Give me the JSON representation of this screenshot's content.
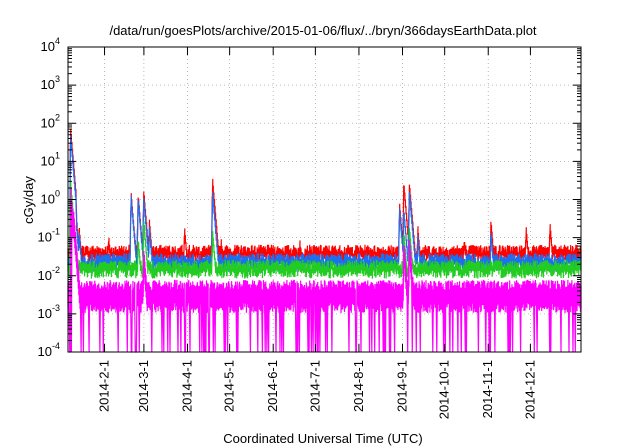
{
  "chart_data": {
    "type": "line",
    "title": "/data/run/goesPlots/archive/2015-01-06/flux/../bryn/366daysEarthData.plot",
    "xlabel": "Coordinated Universal Time (UTC)",
    "ylabel": "cGy/day",
    "yscale": "log",
    "ylim": [
      0.0001,
      10000
    ],
    "y_ticks": [
      {
        "base": "10",
        "exp": "-4",
        "value": 0.0001
      },
      {
        "base": "10",
        "exp": "-3",
        "value": 0.001
      },
      {
        "base": "10",
        "exp": "-2",
        "value": 0.01
      },
      {
        "base": "10",
        "exp": "-1",
        "value": 0.1
      },
      {
        "base": "10",
        "exp": "0",
        "value": 1
      },
      {
        "base": "10",
        "exp": "1",
        "value": 10
      },
      {
        "base": "10",
        "exp": "2",
        "value": 100
      },
      {
        "base": "10",
        "exp": "3",
        "value": 1000
      },
      {
        "base": "10",
        "exp": "4",
        "value": 10000
      }
    ],
    "xlim": [
      "2014-01-06",
      "2015-01-06"
    ],
    "x_ticks": [
      {
        "label": "2014-2-1",
        "date": "2014-02-01"
      },
      {
        "label": "2014-3-1",
        "date": "2014-03-01"
      },
      {
        "label": "2014-4-1",
        "date": "2014-04-01"
      },
      {
        "label": "2014-5-1",
        "date": "2014-05-01"
      },
      {
        "label": "2014-6-1",
        "date": "2014-06-01"
      },
      {
        "label": "2014-7-1",
        "date": "2014-07-01"
      },
      {
        "label": "2014-8-1",
        "date": "2014-08-01"
      },
      {
        "label": "2014-9-1",
        "date": "2014-09-01"
      },
      {
        "label": "2014-10-1",
        "date": "2014-10-01"
      },
      {
        "label": "2014-11-1",
        "date": "2014-11-01"
      },
      {
        "label": "2014-12-1",
        "date": "2014-12-01"
      }
    ],
    "grid": true,
    "series": [
      {
        "color": "#ff0000",
        "baseline": 0.05,
        "x": [
          "2014-01-08",
          "2014-01-10",
          "2014-01-14",
          "2014-02-04",
          "2014-02-20",
          "2014-02-25",
          "2014-03-01",
          "2014-03-05",
          "2014-03-30",
          "2014-04-19",
          "2014-04-25",
          "2014-06-20",
          "2014-08-30",
          "2014-09-02",
          "2014-09-06",
          "2014-09-12",
          "2014-10-15",
          "2014-11-03",
          "2014-11-28",
          "2014-12-15"
        ],
        "y": [
          75,
          3,
          0.2,
          0.12,
          1.5,
          1.4,
          1.8,
          0.3,
          0.2,
          3.5,
          0.1,
          0.09,
          0.8,
          3.0,
          2.8,
          0.2,
          0.1,
          0.3,
          0.2,
          0.25
        ]
      },
      {
        "color": "#1e6ef0",
        "baseline": 0.03,
        "x": [
          "2014-01-08",
          "2014-01-10",
          "2014-01-14",
          "2014-02-20",
          "2014-02-25",
          "2014-03-01",
          "2014-03-05",
          "2014-04-19",
          "2014-08-30",
          "2014-09-02",
          "2014-09-06",
          "2014-09-12",
          "2014-11-03"
        ],
        "y": [
          50,
          2,
          0.15,
          1.3,
          1.2,
          1.2,
          0.2,
          1.6,
          0.6,
          0.6,
          1.8,
          0.12,
          0.15
        ]
      },
      {
        "color": "#22cc22",
        "baseline": 0.02,
        "x": [
          "2014-01-08",
          "2014-01-10",
          "2014-02-25",
          "2014-03-01",
          "2014-04-19",
          "2014-09-02",
          "2014-09-06"
        ],
        "y": [
          3,
          0.5,
          0.1,
          0.3,
          0.15,
          0.15,
          0.2
        ]
      },
      {
        "color": "#ff00ff",
        "baseline": 0.006,
        "floor": 0.0001,
        "x": [
          "2014-01-08",
          "2014-01-10",
          "2014-03-01",
          "2014-09-02",
          "2014-09-06"
        ],
        "y": [
          2,
          0.5,
          0.05,
          0.08,
          0.1
        ]
      }
    ]
  }
}
